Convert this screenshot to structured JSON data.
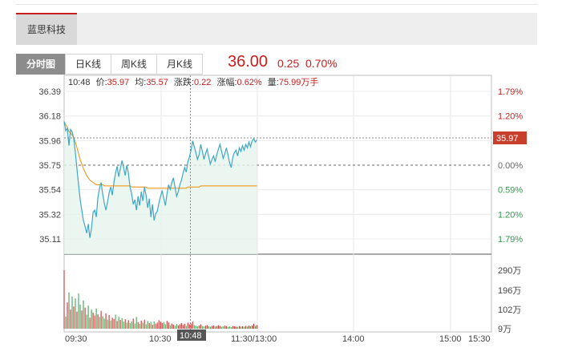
{
  "stock_tab": "蓝思科技",
  "tabs": [
    "分时图",
    "日K线",
    "周K线",
    "月K线"
  ],
  "quote": {
    "price": "36.00",
    "change": "0.25",
    "change_pct": "0.70%"
  },
  "info": {
    "time": "10:48",
    "price_label": "价:",
    "price": "35.97",
    "avg_label": "均:",
    "avg": "35.57",
    "chg_label": "涨跌:",
    "chg": "0.22",
    "pct_label": "涨幅:",
    "pct": "0.62%",
    "vol_label": "量:",
    "vol": "75.99万手"
  },
  "cursor_time": "10:48",
  "current_price_tag": "35.97",
  "colors": {
    "up": "#c81e1e",
    "down": "#2e9a4a",
    "price_line": "#3aa8c8",
    "avg_line": "#f08c00"
  },
  "chart_data": {
    "type": "line",
    "title": "",
    "prev_close": 35.75,
    "price_ticks": [
      "36.39",
      "36.18",
      "35.96",
      "35.75",
      "35.54",
      "35.32",
      "35.11"
    ],
    "pct_ticks": [
      "1.79%",
      "1.20%",
      "0.59%",
      "0.00%",
      "0.59%",
      "1.20%",
      "1.79%"
    ],
    "volume_ticks": [
      "290万",
      "196万",
      "102万",
      "9万"
    ],
    "x_ticks": [
      "09:30",
      "10:30",
      "11:30/13:00",
      "14:00",
      "15:00",
      "15:30"
    ],
    "ylim": [
      35.11,
      36.39
    ],
    "volume_max": 290,
    "x_minutes": [
      0,
      1,
      2,
      3,
      4,
      5,
      6,
      7,
      8,
      9,
      10,
      11,
      12,
      13,
      14,
      15,
      16,
      17,
      18,
      19,
      20,
      21,
      22,
      23,
      24,
      25,
      26,
      27,
      28,
      29,
      30,
      31,
      32,
      33,
      34,
      35,
      36,
      37,
      38,
      39,
      40,
      41,
      42,
      43,
      44,
      45,
      46,
      47,
      48,
      49,
      50,
      51,
      52,
      53,
      54,
      55,
      56,
      57,
      58,
      59,
      60,
      61,
      62,
      63,
      64,
      65,
      66,
      67,
      68,
      69,
      70,
      71,
      72,
      73,
      74,
      75,
      76,
      77,
      78,
      79,
      80,
      81,
      82,
      83,
      84,
      85,
      86,
      87,
      88,
      89,
      90,
      91,
      92,
      93,
      94,
      95,
      96,
      97,
      98,
      99,
      100,
      101,
      102,
      103,
      104,
      105,
      106,
      107,
      108,
      109,
      110,
      111,
      112,
      113,
      114,
      115,
      116,
      117,
      118,
      119,
      120
    ],
    "series": [
      {
        "name": "价",
        "values": [
          36.13,
          36.05,
          36.07,
          35.92,
          36.06,
          36.04,
          35.98,
          35.86,
          35.72,
          35.58,
          35.45,
          35.36,
          35.27,
          35.22,
          35.16,
          35.24,
          35.12,
          35.2,
          35.34,
          35.36,
          35.3,
          35.47,
          35.55,
          35.6,
          35.5,
          35.42,
          35.36,
          35.43,
          35.51,
          35.56,
          35.49,
          35.6,
          35.68,
          35.74,
          35.65,
          35.72,
          35.79,
          35.73,
          35.66,
          35.75,
          35.68,
          35.56,
          35.5,
          35.41,
          35.45,
          35.36,
          35.48,
          35.4,
          35.52,
          35.44,
          35.56,
          35.49,
          35.38,
          35.46,
          35.3,
          35.41,
          35.27,
          35.33,
          35.35,
          35.42,
          35.48,
          35.53,
          35.46,
          35.4,
          35.5,
          35.58,
          35.54,
          35.6,
          35.64,
          35.56,
          35.48,
          35.52,
          35.58,
          35.62,
          35.68,
          35.73,
          35.69,
          35.78,
          35.82,
          35.88,
          35.96,
          35.91,
          35.86,
          35.8,
          35.84,
          35.93,
          35.87,
          35.8,
          35.85,
          35.89,
          35.82,
          35.76,
          35.8,
          35.83,
          35.78,
          35.84,
          35.89,
          35.93,
          35.87,
          35.81,
          35.85,
          35.9,
          35.84,
          35.77,
          35.73,
          35.82,
          35.86,
          35.88,
          35.83,
          35.9,
          35.87,
          35.92,
          35.88,
          35.93,
          35.9,
          35.95,
          35.91,
          35.96,
          35.98,
          35.95,
          35.97
        ]
      },
      {
        "name": "均",
        "values": [
          36.13,
          36.1,
          36.08,
          36.04,
          36.03,
          36.01,
          35.99,
          35.95,
          35.9,
          35.85,
          35.8,
          35.76,
          35.72,
          35.69,
          35.66,
          35.64,
          35.62,
          35.61,
          35.6,
          35.59,
          35.58,
          35.58,
          35.58,
          35.58,
          35.58,
          35.57,
          35.57,
          35.57,
          35.57,
          35.57,
          35.57,
          35.57,
          35.57,
          35.57,
          35.57,
          35.57,
          35.57,
          35.57,
          35.57,
          35.57,
          35.57,
          35.57,
          35.56,
          35.56,
          35.56,
          35.56,
          35.56,
          35.56,
          35.56,
          35.56,
          35.56,
          35.56,
          35.55,
          35.55,
          35.55,
          35.55,
          35.55,
          35.55,
          35.55,
          35.55,
          35.55,
          35.55,
          35.55,
          35.55,
          35.55,
          35.55,
          35.55,
          35.55,
          35.55,
          35.55,
          35.55,
          35.55,
          35.55,
          35.55,
          35.55,
          35.55,
          35.55,
          35.56,
          35.56,
          35.56,
          35.56,
          35.56,
          35.56,
          35.56,
          35.56,
          35.57,
          35.57,
          35.57,
          35.57,
          35.57,
          35.57,
          35.57,
          35.57,
          35.57,
          35.57,
          35.57,
          35.57,
          35.57,
          35.57,
          35.57,
          35.57,
          35.57,
          35.57,
          35.57,
          35.57,
          35.57,
          35.57,
          35.57,
          35.57,
          35.57,
          35.57,
          35.57,
          35.57,
          35.57,
          35.57,
          35.57,
          35.57,
          35.57,
          35.57,
          35.57,
          35.57
        ]
      }
    ],
    "volume": [
      {
        "t": 0,
        "v": 290,
        "up": true
      },
      {
        "t": 1,
        "v": 60,
        "up": false
      },
      {
        "t": 2,
        "v": 130,
        "up": true
      },
      {
        "t": 3,
        "v": 180,
        "up": false
      },
      {
        "t": 4,
        "v": 95,
        "up": true
      },
      {
        "t": 5,
        "v": 160,
        "up": false
      },
      {
        "t": 6,
        "v": 110,
        "up": true
      },
      {
        "t": 7,
        "v": 150,
        "up": false
      },
      {
        "t": 8,
        "v": 85,
        "up": true
      },
      {
        "t": 9,
        "v": 175,
        "up": false
      },
      {
        "t": 10,
        "v": 120,
        "up": false
      },
      {
        "t": 11,
        "v": 90,
        "up": true
      },
      {
        "t": 12,
        "v": 140,
        "up": false
      },
      {
        "t": 13,
        "v": 105,
        "up": true
      },
      {
        "t": 14,
        "v": 70,
        "up": false
      },
      {
        "t": 15,
        "v": 115,
        "up": false
      },
      {
        "t": 16,
        "v": 55,
        "up": true
      },
      {
        "t": 17,
        "v": 95,
        "up": false
      },
      {
        "t": 18,
        "v": 80,
        "up": true
      },
      {
        "t": 19,
        "v": 65,
        "up": true
      },
      {
        "t": 20,
        "v": 100,
        "up": false
      },
      {
        "t": 21,
        "v": 72,
        "up": true
      },
      {
        "t": 22,
        "v": 58,
        "up": false
      },
      {
        "t": 23,
        "v": 88,
        "up": true
      },
      {
        "t": 24,
        "v": 62,
        "up": false
      },
      {
        "t": 25,
        "v": 50,
        "up": false
      },
      {
        "t": 26,
        "v": 76,
        "up": true
      },
      {
        "t": 27,
        "v": 45,
        "up": false
      },
      {
        "t": 28,
        "v": 68,
        "up": true
      },
      {
        "t": 29,
        "v": 40,
        "up": false
      },
      {
        "t": 30,
        "v": 55,
        "up": true
      },
      {
        "t": 31,
        "v": 48,
        "up": true
      },
      {
        "t": 32,
        "v": 70,
        "up": false
      },
      {
        "t": 33,
        "v": 38,
        "up": true
      },
      {
        "t": 34,
        "v": 60,
        "up": false
      },
      {
        "t": 35,
        "v": 44,
        "up": true
      },
      {
        "t": 36,
        "v": 52,
        "up": false
      },
      {
        "t": 37,
        "v": 35,
        "up": false
      },
      {
        "t": 38,
        "v": 47,
        "up": true
      },
      {
        "t": 39,
        "v": 30,
        "up": false
      },
      {
        "t": 40,
        "v": 42,
        "up": true
      },
      {
        "t": 41,
        "v": 28,
        "up": false
      },
      {
        "t": 42,
        "v": 36,
        "up": false
      },
      {
        "t": 43,
        "v": 50,
        "up": true
      },
      {
        "t": 44,
        "v": 26,
        "up": false
      },
      {
        "t": 45,
        "v": 58,
        "up": false
      },
      {
        "t": 46,
        "v": 33,
        "up": true
      },
      {
        "t": 47,
        "v": 24,
        "up": false
      },
      {
        "t": 48,
        "v": 40,
        "up": true
      },
      {
        "t": 49,
        "v": 30,
        "up": false
      },
      {
        "t": 50,
        "v": 45,
        "up": true
      },
      {
        "t": 51,
        "v": 22,
        "up": false
      },
      {
        "t": 52,
        "v": 38,
        "up": false
      },
      {
        "t": 53,
        "v": 27,
        "up": true
      },
      {
        "t": 54,
        "v": 34,
        "up": false
      },
      {
        "t": 55,
        "v": 20,
        "up": true
      },
      {
        "t": 56,
        "v": 36,
        "up": false
      },
      {
        "t": 57,
        "v": 25,
        "up": true
      },
      {
        "t": 58,
        "v": 30,
        "up": true
      },
      {
        "t": 59,
        "v": 42,
        "up": true
      },
      {
        "t": 60,
        "v": 35,
        "up": true
      },
      {
        "t": 61,
        "v": 28,
        "up": true
      },
      {
        "t": 62,
        "v": 33,
        "up": false
      },
      {
        "t": 63,
        "v": 22,
        "up": false
      },
      {
        "t": 64,
        "v": 39,
        "up": true
      },
      {
        "t": 65,
        "v": 31,
        "up": true
      },
      {
        "t": 66,
        "v": 18,
        "up": false
      },
      {
        "t": 67,
        "v": 26,
        "up": true
      },
      {
        "t": 68,
        "v": 20,
        "up": true
      },
      {
        "t": 69,
        "v": 15,
        "up": false
      },
      {
        "t": 70,
        "v": 24,
        "up": false
      },
      {
        "t": 71,
        "v": 17,
        "up": true
      },
      {
        "t": 72,
        "v": 22,
        "up": true
      },
      {
        "t": 73,
        "v": 28,
        "up": true
      },
      {
        "t": 74,
        "v": 19,
        "up": true
      },
      {
        "t": 75,
        "v": 25,
        "up": true
      },
      {
        "t": 76,
        "v": 14,
        "up": false
      },
      {
        "t": 77,
        "v": 30,
        "up": true
      },
      {
        "t": 78,
        "v": 21,
        "up": true
      },
      {
        "t": 79,
        "v": 26,
        "up": true
      },
      {
        "t": 80,
        "v": 34,
        "up": true
      },
      {
        "t": 81,
        "v": 18,
        "up": false
      },
      {
        "t": 82,
        "v": 15,
        "up": false
      },
      {
        "t": 83,
        "v": 12,
        "up": false
      },
      {
        "t": 84,
        "v": 16,
        "up": true
      },
      {
        "t": 85,
        "v": 22,
        "up": true
      },
      {
        "t": 86,
        "v": 13,
        "up": false
      },
      {
        "t": 87,
        "v": 11,
        "up": false
      },
      {
        "t": 88,
        "v": 15,
        "up": true
      },
      {
        "t": 89,
        "v": 18,
        "up": true
      },
      {
        "t": 90,
        "v": 12,
        "up": false
      },
      {
        "t": 91,
        "v": 10,
        "up": false
      },
      {
        "t": 92,
        "v": 14,
        "up": true
      },
      {
        "t": 93,
        "v": 16,
        "up": true
      },
      {
        "t": 94,
        "v": 11,
        "up": false
      },
      {
        "t": 95,
        "v": 13,
        "up": true
      },
      {
        "t": 96,
        "v": 17,
        "up": true
      },
      {
        "t": 97,
        "v": 14,
        "up": true
      },
      {
        "t": 98,
        "v": 10,
        "up": false
      },
      {
        "t": 99,
        "v": 12,
        "up": false
      },
      {
        "t": 100,
        "v": 15,
        "up": true
      },
      {
        "t": 101,
        "v": 13,
        "up": true
      },
      {
        "t": 102,
        "v": 9,
        "up": false
      },
      {
        "t": 103,
        "v": 11,
        "up": false
      },
      {
        "t": 104,
        "v": 8,
        "up": false
      },
      {
        "t": 105,
        "v": 14,
        "up": true
      },
      {
        "t": 106,
        "v": 12,
        "up": true
      },
      {
        "t": 107,
        "v": 10,
        "up": true
      },
      {
        "t": 108,
        "v": 9,
        "up": false
      },
      {
        "t": 109,
        "v": 13,
        "up": true
      },
      {
        "t": 110,
        "v": 11,
        "up": false
      },
      {
        "t": 111,
        "v": 12,
        "up": true
      },
      {
        "t": 112,
        "v": 10,
        "up": false
      },
      {
        "t": 113,
        "v": 14,
        "up": true
      },
      {
        "t": 114,
        "v": 11,
        "up": false
      },
      {
        "t": 115,
        "v": 15,
        "up": true
      },
      {
        "t": 116,
        "v": 12,
        "up": false
      },
      {
        "t": 117,
        "v": 16,
        "up": true
      },
      {
        "t": 118,
        "v": 25,
        "up": true
      },
      {
        "t": 119,
        "v": 14,
        "up": false
      },
      {
        "t": 120,
        "v": 18,
        "up": true
      }
    ]
  }
}
